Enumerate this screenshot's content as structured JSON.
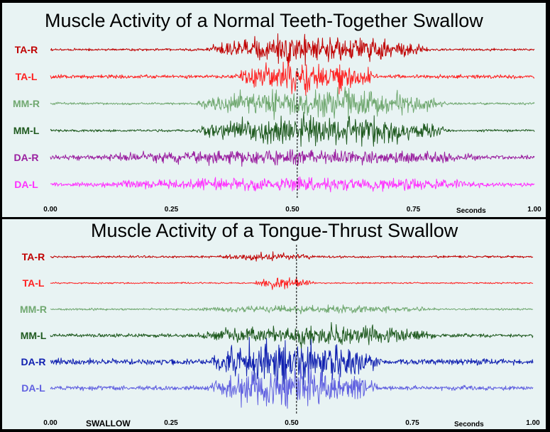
{
  "chart_data": [
    {
      "type": "line",
      "title": "Muscle Activity of a Normal Teeth-Together Swallow",
      "x_unit": "Seconds",
      "x_ticks": [
        "0.00",
        "0.25",
        "0.50",
        "0.75",
        "1.00"
      ],
      "xlim": [
        0,
        1.0
      ],
      "swallow_marker_x": 0.51,
      "series": [
        {
          "name": "TA-R",
          "color": "#c00000",
          "burst_start": 0.32,
          "burst_end": 0.78,
          "burst_amp": 0.9,
          "base_amp": 0.08
        },
        {
          "name": "TA-L",
          "color": "#ff2020",
          "burst_start": 0.38,
          "burst_end": 0.68,
          "burst_amp": 1.0,
          "base_amp": 0.12
        },
        {
          "name": "MM-R",
          "color": "#70a870",
          "burst_start": 0.3,
          "burst_end": 0.82,
          "burst_amp": 0.85,
          "base_amp": 0.08
        },
        {
          "name": "MM-L",
          "color": "#1f5a1f",
          "burst_start": 0.3,
          "burst_end": 0.82,
          "burst_amp": 1.0,
          "base_amp": 0.08
        },
        {
          "name": "DA-R",
          "color": "#9a1fa0",
          "burst_start": 0.1,
          "burst_end": 0.9,
          "burst_amp": 0.35,
          "base_amp": 0.15
        },
        {
          "name": "DA-L",
          "color": "#ff30ff",
          "burst_start": 0.1,
          "burst_end": 0.9,
          "burst_amp": 0.3,
          "base_amp": 0.15
        }
      ]
    },
    {
      "type": "line",
      "title": "Muscle Activity of a Tongue-Thrust Swallow",
      "x_unit": "Seconds",
      "x_ticks": [
        "0.00",
        "0.25",
        "0.50",
        "0.75",
        "1.00"
      ],
      "xlim": [
        0,
        1.0
      ],
      "swallow_marker_x": 0.51,
      "marker_label": "SWALLOW",
      "series": [
        {
          "name": "TA-R",
          "color": "#c00000",
          "burst_start": 0.35,
          "burst_end": 0.55,
          "burst_amp": 0.2,
          "base_amp": 0.07
        },
        {
          "name": "TA-L",
          "color": "#ff2020",
          "burst_start": 0.42,
          "burst_end": 0.55,
          "burst_amp": 0.35,
          "base_amp": 0.05
        },
        {
          "name": "MM-R",
          "color": "#70a870",
          "burst_start": 0.3,
          "burst_end": 0.8,
          "burst_amp": 0.2,
          "base_amp": 0.07
        },
        {
          "name": "MM-L",
          "color": "#1f5a1f",
          "burst_start": 0.3,
          "burst_end": 0.8,
          "burst_amp": 0.55,
          "base_amp": 0.12
        },
        {
          "name": "DA-R",
          "color": "#1020b0",
          "burst_start": 0.33,
          "burst_end": 0.68,
          "burst_amp": 1.4,
          "base_amp": 0.2
        },
        {
          "name": "DA-L",
          "color": "#6060e0",
          "burst_start": 0.33,
          "burst_end": 0.68,
          "burst_amp": 1.2,
          "base_amp": 0.15
        }
      ]
    }
  ]
}
